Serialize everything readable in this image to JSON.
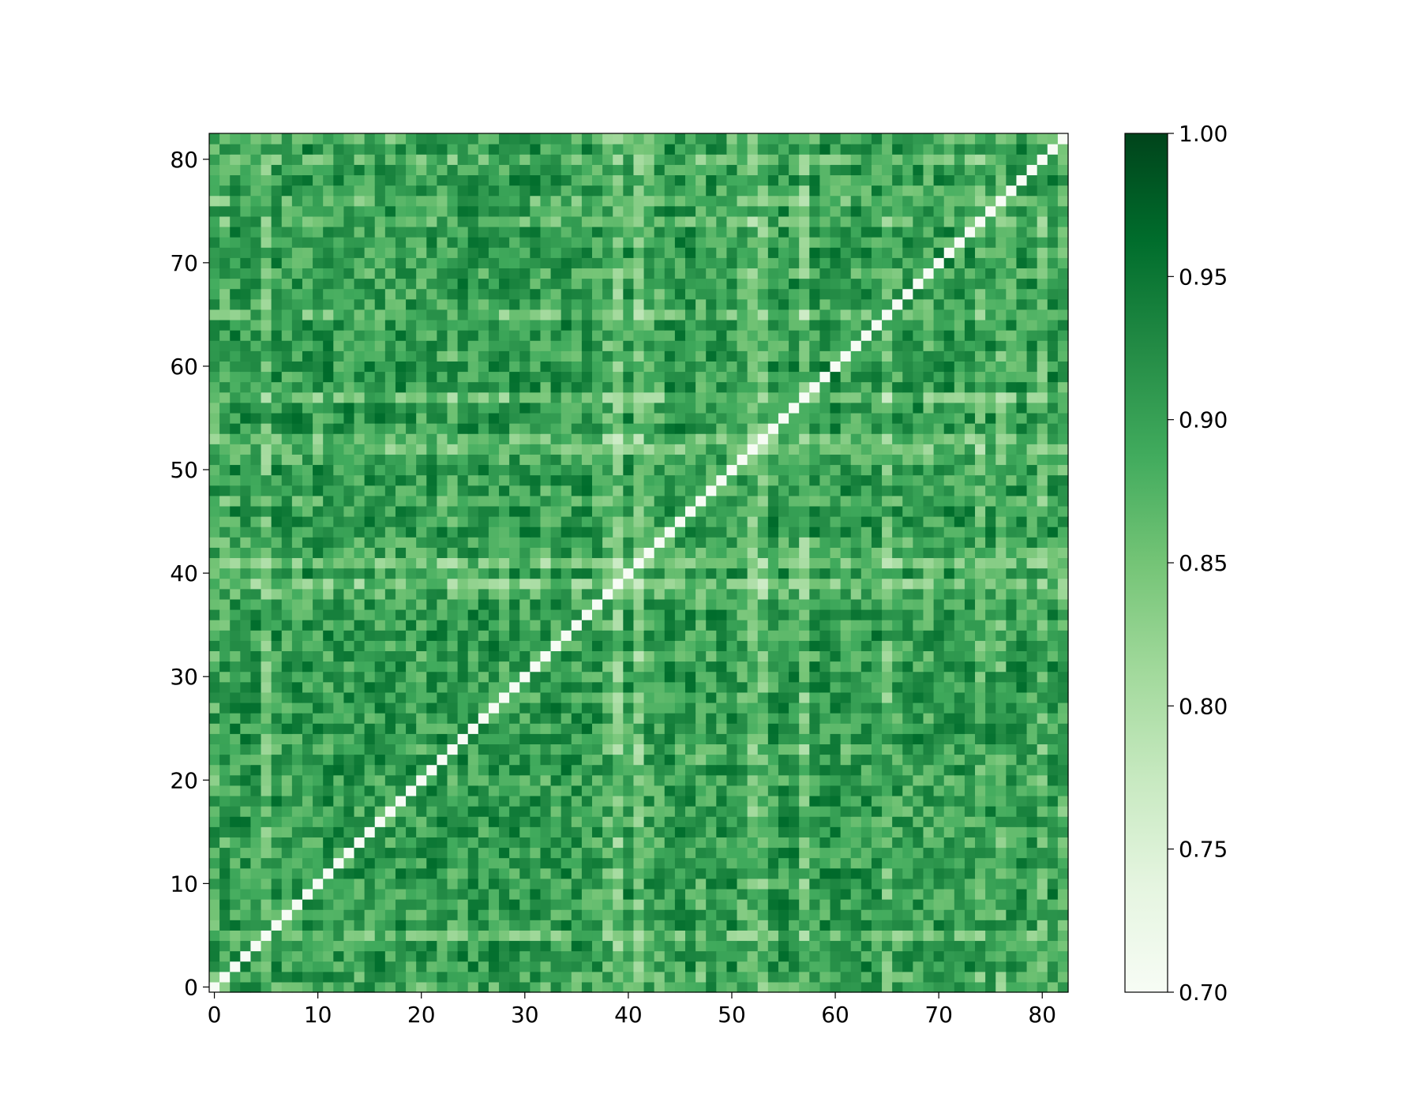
{
  "chart_data": {
    "type": "heatmap",
    "title": "",
    "xlabel": "",
    "ylabel": "",
    "n": 83,
    "xlim": [
      -0.5,
      82.5
    ],
    "ylim": [
      -0.5,
      82.5
    ],
    "x_ticks": [
      0,
      10,
      20,
      30,
      40,
      50,
      60,
      70,
      80
    ],
    "y_ticks": [
      0,
      10,
      20,
      30,
      40,
      50,
      60,
      70,
      80
    ],
    "x_tick_labels": [
      "0",
      "10",
      "20",
      "30",
      "40",
      "50",
      "60",
      "70",
      "80"
    ],
    "y_tick_labels": [
      "0",
      "10",
      "20",
      "30",
      "40",
      "50",
      "60",
      "70",
      "80"
    ],
    "origin": "lower",
    "grid": false,
    "colormap": "Greens",
    "colormap_stops": [
      "#f7fcf5",
      "#e5f5e0",
      "#c7e9c0",
      "#a1d99b",
      "#74c476",
      "#41ab5d",
      "#238b45",
      "#006d2c",
      "#00441b"
    ],
    "vmin": 0.7,
    "vmax": 1.0,
    "colorbar": {
      "ticks": [
        0.7,
        0.75,
        0.8,
        0.85,
        0.9,
        0.95,
        1.0
      ],
      "tick_labels": [
        "0.70",
        "0.75",
        "0.80",
        "0.85",
        "0.90",
        "0.95",
        "1.00"
      ],
      "placement": "right"
    },
    "diagonal": {
      "value": 0.7,
      "note_value_range": [
        0.7,
        1.0
      ]
    },
    "off_diagonal_range": [
      0.75,
      1.0
    ],
    "off_diagonal_mean": 0.9,
    "symmetric": true
  }
}
